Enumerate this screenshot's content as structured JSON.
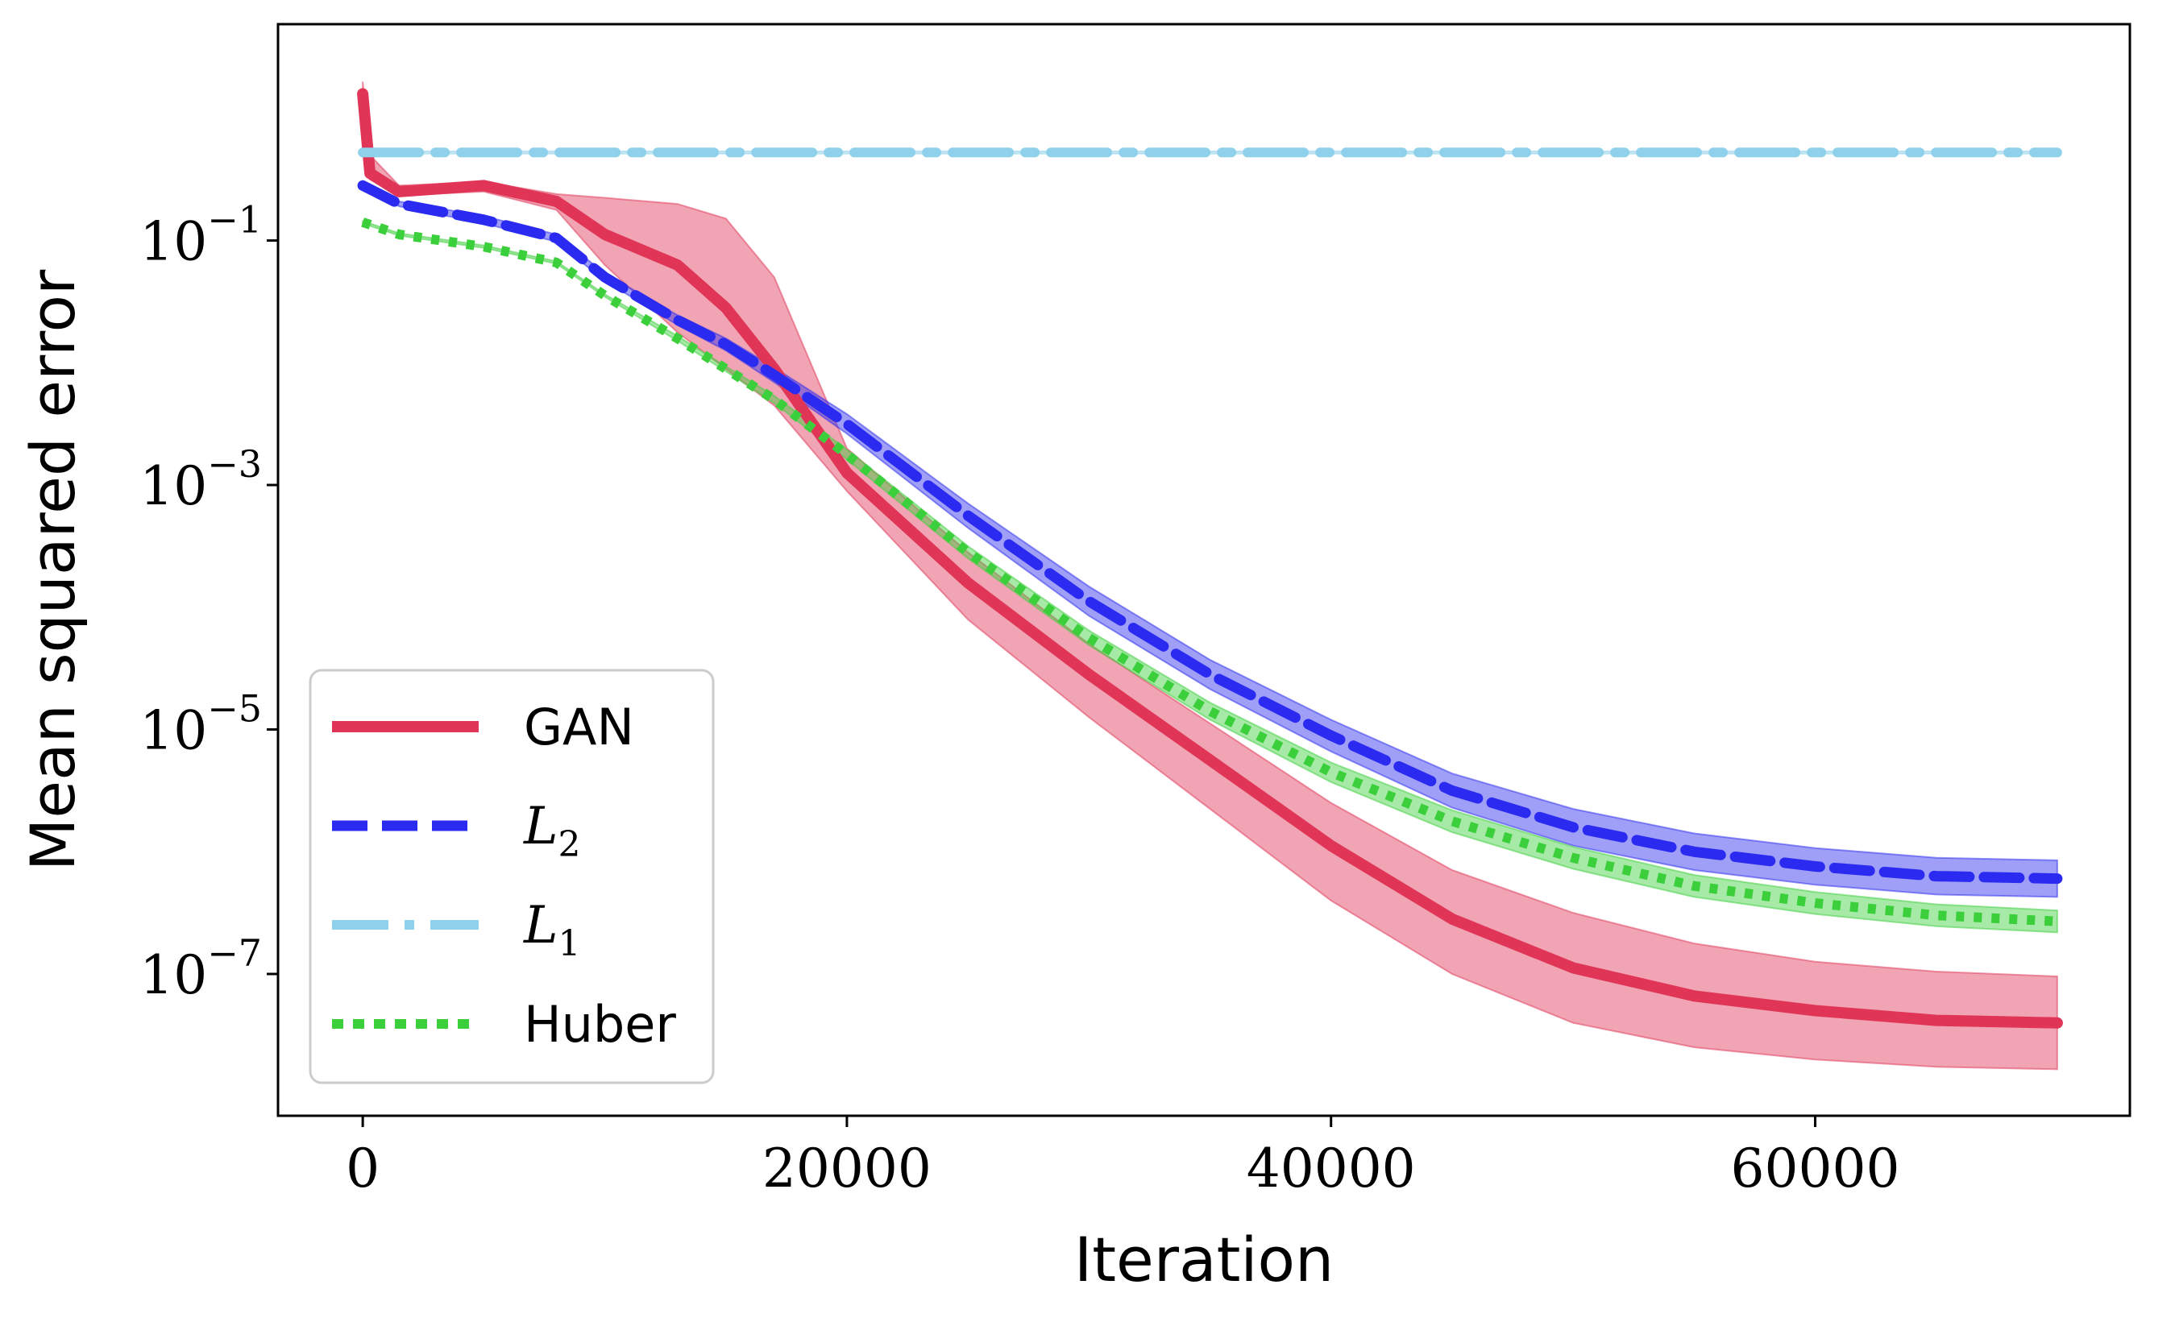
{
  "chart_data": {
    "type": "line",
    "title": "",
    "xlabel": "Iteration",
    "ylabel": "Mean squared error",
    "yscale": "log",
    "xlim": [
      -3500,
      73000
    ],
    "ylim_log10": [
      -8.16,
      0.77
    ],
    "x_ticks": [
      {
        "value": 0,
        "label": "0"
      },
      {
        "value": 20000,
        "label": "20000"
      },
      {
        "value": 40000,
        "label": "40000"
      },
      {
        "value": 60000,
        "label": "60000"
      }
    ],
    "y_ticks": [
      {
        "log10": -1,
        "base": "10",
        "exp": "−1"
      },
      {
        "log10": -3,
        "base": "10",
        "exp": "−3"
      },
      {
        "log10": -5,
        "base": "10",
        "exp": "−5"
      },
      {
        "log10": -7,
        "base": "10",
        "exp": "−7"
      }
    ],
    "legend": {
      "position": "lower-left",
      "entries": [
        {
          "series": "GAN",
          "text": "GAN",
          "math": false
        },
        {
          "series": "L2",
          "text": "L",
          "sub": "2",
          "math": true
        },
        {
          "series": "L1",
          "text": "L",
          "sub": "1",
          "math": true
        },
        {
          "series": "Huber",
          "text": "Huber",
          "math": false
        }
      ]
    },
    "x": [
      0,
      300,
      1500,
      5000,
      8000,
      10000,
      13000,
      15000,
      17000,
      20000,
      25000,
      30000,
      35000,
      40000,
      45000,
      50000,
      55000,
      60000,
      65000,
      70000
    ],
    "series": [
      {
        "name": "GAN",
        "color": "#e03557",
        "style": "solid",
        "mean_log10": [
          0.2,
          -0.45,
          -0.6,
          -0.55,
          -0.68,
          -0.95,
          -1.2,
          -1.55,
          -2.05,
          -2.9,
          -3.8,
          -4.55,
          -5.25,
          -5.95,
          -6.55,
          -6.95,
          -7.18,
          -7.3,
          -7.38,
          -7.4
        ],
        "upper_log10": [
          0.3,
          -0.3,
          -0.55,
          -0.52,
          -0.62,
          -0.65,
          -0.7,
          -0.82,
          -1.3,
          -2.7,
          -3.55,
          -4.3,
          -4.95,
          -5.6,
          -6.15,
          -6.5,
          -6.75,
          -6.9,
          -6.98,
          -7.02
        ],
        "lower_log10": [
          0.1,
          -0.5,
          -0.63,
          -0.6,
          -0.75,
          -1.2,
          -1.75,
          -2.05,
          -2.35,
          -3.05,
          -4.1,
          -4.9,
          -5.65,
          -6.4,
          -7.0,
          -7.4,
          -7.6,
          -7.7,
          -7.76,
          -7.78
        ]
      },
      {
        "name": "L2",
        "color": "#2a2af0",
        "style": "dashed",
        "mean_log10": [
          -0.55,
          -0.58,
          -0.7,
          -0.83,
          -0.98,
          -1.3,
          -1.65,
          -1.85,
          -2.1,
          -2.5,
          -3.25,
          -3.95,
          -4.55,
          -5.05,
          -5.5,
          -5.8,
          -6.0,
          -6.12,
          -6.2,
          -6.22
        ],
        "upper_log10": [
          -0.53,
          -0.56,
          -0.68,
          -0.8,
          -0.95,
          -1.27,
          -1.61,
          -1.8,
          -2.04,
          -2.42,
          -3.15,
          -3.83,
          -4.43,
          -4.92,
          -5.36,
          -5.65,
          -5.85,
          -5.97,
          -6.05,
          -6.07
        ],
        "lower_log10": [
          -0.57,
          -0.6,
          -0.72,
          -0.86,
          -1.01,
          -1.33,
          -1.69,
          -1.9,
          -2.16,
          -2.58,
          -3.35,
          -4.07,
          -4.67,
          -5.18,
          -5.64,
          -5.95,
          -6.15,
          -6.27,
          -6.35,
          -6.37
        ]
      },
      {
        "name": "L1",
        "color": "#8fd0ea",
        "style": "dashdot",
        "mean_log10": [
          -0.28,
          -0.28,
          -0.28,
          -0.28,
          -0.28,
          -0.28,
          -0.28,
          -0.28,
          -0.28,
          -0.28,
          -0.28,
          -0.28,
          -0.28,
          -0.28,
          -0.28,
          -0.28,
          -0.28,
          -0.28,
          -0.28,
          -0.28
        ],
        "upper_log10": [
          -0.27,
          -0.27,
          -0.27,
          -0.27,
          -0.27,
          -0.27,
          -0.27,
          -0.27,
          -0.27,
          -0.27,
          -0.27,
          -0.27,
          -0.27,
          -0.27,
          -0.27,
          -0.27,
          -0.27,
          -0.27,
          -0.27,
          -0.27
        ],
        "lower_log10": [
          -0.29,
          -0.29,
          -0.29,
          -0.29,
          -0.29,
          -0.29,
          -0.29,
          -0.29,
          -0.29,
          -0.29,
          -0.29,
          -0.29,
          -0.29,
          -0.29,
          -0.29,
          -0.29,
          -0.29,
          -0.29,
          -0.29,
          -0.29
        ]
      },
      {
        "name": "Huber",
        "color": "#3ccf3c",
        "style": "dotted",
        "mean_log10": [
          -0.85,
          -0.87,
          -0.95,
          -1.05,
          -1.18,
          -1.45,
          -1.8,
          -2.05,
          -2.3,
          -2.75,
          -3.55,
          -4.25,
          -4.85,
          -5.35,
          -5.75,
          -6.05,
          -6.28,
          -6.42,
          -6.52,
          -6.57
        ],
        "upper_log10": [
          -0.84,
          -0.86,
          -0.94,
          -1.04,
          -1.17,
          -1.44,
          -1.78,
          -2.03,
          -2.27,
          -2.71,
          -3.5,
          -4.19,
          -4.78,
          -5.27,
          -5.66,
          -5.96,
          -6.19,
          -6.33,
          -6.43,
          -6.48
        ],
        "lower_log10": [
          -0.86,
          -0.88,
          -0.96,
          -1.06,
          -1.19,
          -1.46,
          -1.82,
          -2.07,
          -2.33,
          -2.79,
          -3.6,
          -4.31,
          -4.92,
          -5.43,
          -5.84,
          -6.14,
          -6.37,
          -6.51,
          -6.61,
          -6.66
        ]
      }
    ]
  }
}
